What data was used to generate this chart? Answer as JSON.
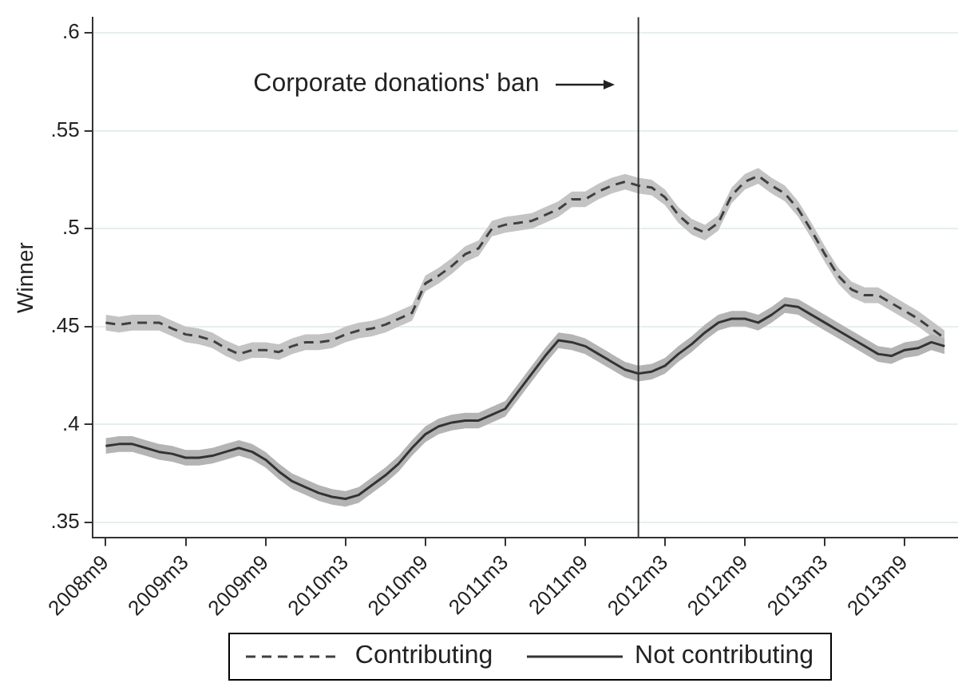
{
  "chart_data": {
    "type": "line",
    "ylabel": "Winner",
    "annotations": [
      "Corporate donations' ban"
    ],
    "x": [
      "2008-09",
      "2008-10",
      "2008-11",
      "2008-12",
      "2009-01",
      "2009-02",
      "2009-03",
      "2009-04",
      "2009-05",
      "2009-06",
      "2009-07",
      "2009-08",
      "2009-09",
      "2009-10",
      "2009-11",
      "2009-12",
      "2010-01",
      "2010-02",
      "2010-03",
      "2010-04",
      "2010-05",
      "2010-06",
      "2010-07",
      "2010-08",
      "2010-09",
      "2010-10",
      "2010-11",
      "2010-12",
      "2011-01",
      "2011-02",
      "2011-03",
      "2011-04",
      "2011-05",
      "2011-06",
      "2011-07",
      "2011-08",
      "2011-09",
      "2011-10",
      "2011-11",
      "2011-12",
      "2012-01",
      "2012-02",
      "2012-03",
      "2012-04",
      "2012-05",
      "2012-06",
      "2012-07",
      "2012-08",
      "2012-09",
      "2012-10",
      "2012-11",
      "2012-12",
      "2013-01",
      "2013-02",
      "2013-03",
      "2013-04",
      "2013-05",
      "2013-06",
      "2013-07",
      "2013-08",
      "2013-09",
      "2013-10",
      "2013-11",
      "2013-12"
    ],
    "series": [
      {
        "name": "Contributing",
        "color": "#404040",
        "line_style": "dashed",
        "values": [
          0.452,
          0.451,
          0.452,
          0.452,
          0.452,
          0.449,
          0.446,
          0.445,
          0.443,
          0.439,
          0.436,
          0.438,
          0.438,
          0.437,
          0.44,
          0.442,
          0.442,
          0.443,
          0.446,
          0.448,
          0.449,
          0.451,
          0.454,
          0.457,
          0.472,
          0.476,
          0.481,
          0.487,
          0.49,
          0.5,
          0.502,
          0.503,
          0.504,
          0.507,
          0.51,
          0.515,
          0.515,
          0.519,
          0.522,
          0.524,
          0.522,
          0.521,
          0.516,
          0.507,
          0.501,
          0.498,
          0.503,
          0.517,
          0.524,
          0.527,
          0.522,
          0.518,
          0.51,
          0.499,
          0.487,
          0.476,
          0.469,
          0.466,
          0.466,
          0.462,
          0.458,
          0.454,
          0.449,
          0.444
        ],
        "lower": [
          0.448,
          0.447,
          0.448,
          0.448,
          0.448,
          0.445,
          0.442,
          0.441,
          0.439,
          0.435,
          0.432,
          0.434,
          0.434,
          0.433,
          0.436,
          0.438,
          0.438,
          0.439,
          0.442,
          0.444,
          0.445,
          0.447,
          0.45,
          0.453,
          0.468,
          0.472,
          0.477,
          0.483,
          0.486,
          0.496,
          0.498,
          0.499,
          0.5,
          0.503,
          0.506,
          0.511,
          0.511,
          0.515,
          0.518,
          0.52,
          0.518,
          0.517,
          0.512,
          0.503,
          0.497,
          0.494,
          0.499,
          0.513,
          0.52,
          0.523,
          0.518,
          0.514,
          0.506,
          0.495,
          0.483,
          0.472,
          0.465,
          0.462,
          0.462,
          0.458,
          0.454,
          0.45,
          0.445,
          0.44
        ],
        "upper": [
          0.456,
          0.455,
          0.456,
          0.456,
          0.456,
          0.453,
          0.45,
          0.449,
          0.447,
          0.443,
          0.44,
          0.442,
          0.442,
          0.441,
          0.444,
          0.446,
          0.446,
          0.447,
          0.45,
          0.452,
          0.453,
          0.455,
          0.458,
          0.461,
          0.476,
          0.48,
          0.485,
          0.491,
          0.494,
          0.504,
          0.506,
          0.507,
          0.508,
          0.511,
          0.514,
          0.519,
          0.519,
          0.523,
          0.526,
          0.528,
          0.526,
          0.525,
          0.52,
          0.511,
          0.505,
          0.502,
          0.507,
          0.521,
          0.528,
          0.531,
          0.526,
          0.522,
          0.514,
          0.503,
          0.491,
          0.48,
          0.473,
          0.47,
          0.47,
          0.466,
          0.462,
          0.458,
          0.453,
          0.448
        ]
      },
      {
        "name": "Not contributing",
        "color": "#333333",
        "line_style": "solid",
        "values": [
          0.389,
          0.39,
          0.39,
          0.388,
          0.386,
          0.385,
          0.383,
          0.383,
          0.384,
          0.386,
          0.388,
          0.386,
          0.382,
          0.376,
          0.371,
          0.368,
          0.365,
          0.363,
          0.362,
          0.364,
          0.369,
          0.374,
          0.38,
          0.388,
          0.395,
          0.399,
          0.401,
          0.402,
          0.402,
          0.405,
          0.408,
          0.417,
          0.426,
          0.435,
          0.443,
          0.442,
          0.44,
          0.436,
          0.432,
          0.428,
          0.426,
          0.427,
          0.43,
          0.436,
          0.441,
          0.447,
          0.452,
          0.454,
          0.454,
          0.452,
          0.456,
          0.461,
          0.46,
          0.456,
          0.452,
          0.448,
          0.444,
          0.44,
          0.436,
          0.435,
          0.438,
          0.439,
          0.442,
          0.44
        ],
        "lower": [
          0.385,
          0.386,
          0.386,
          0.384,
          0.382,
          0.381,
          0.379,
          0.379,
          0.38,
          0.382,
          0.384,
          0.382,
          0.378,
          0.372,
          0.367,
          0.364,
          0.361,
          0.359,
          0.358,
          0.36,
          0.365,
          0.37,
          0.376,
          0.384,
          0.391,
          0.395,
          0.397,
          0.398,
          0.398,
          0.401,
          0.404,
          0.413,
          0.422,
          0.431,
          0.439,
          0.438,
          0.436,
          0.432,
          0.428,
          0.424,
          0.422,
          0.423,
          0.426,
          0.432,
          0.437,
          0.443,
          0.448,
          0.45,
          0.45,
          0.448,
          0.452,
          0.457,
          0.456,
          0.452,
          0.448,
          0.444,
          0.44,
          0.436,
          0.432,
          0.431,
          0.434,
          0.435,
          0.438,
          0.436
        ],
        "upper": [
          0.393,
          0.394,
          0.394,
          0.392,
          0.39,
          0.389,
          0.387,
          0.387,
          0.388,
          0.39,
          0.392,
          0.39,
          0.386,
          0.38,
          0.375,
          0.372,
          0.369,
          0.367,
          0.366,
          0.368,
          0.373,
          0.378,
          0.384,
          0.392,
          0.399,
          0.403,
          0.405,
          0.406,
          0.406,
          0.409,
          0.412,
          0.421,
          0.43,
          0.439,
          0.447,
          0.446,
          0.444,
          0.44,
          0.436,
          0.432,
          0.43,
          0.431,
          0.434,
          0.44,
          0.445,
          0.451,
          0.456,
          0.458,
          0.458,
          0.456,
          0.46,
          0.465,
          0.464,
          0.46,
          0.456,
          0.452,
          0.448,
          0.444,
          0.44,
          0.439,
          0.442,
          0.443,
          0.446,
          0.444
        ]
      }
    ],
    "xlim": [
      "2008-08",
      "2014-01"
    ],
    "xticks": [
      {
        "value": "2008-09",
        "label": "2008m9"
      },
      {
        "value": "2009-03",
        "label": "2009m3"
      },
      {
        "value": "2009-09",
        "label": "2009m9"
      },
      {
        "value": "2010-03",
        "label": "2010m3"
      },
      {
        "value": "2010-09",
        "label": "2010m9"
      },
      {
        "value": "2011-03",
        "label": "2011m3"
      },
      {
        "value": "2011-09",
        "label": "2011m9"
      },
      {
        "value": "2012-03",
        "label": "2012m3"
      },
      {
        "value": "2012-09",
        "label": "2012m9"
      },
      {
        "value": "2013-03",
        "label": "2013m3"
      },
      {
        "value": "2013-09",
        "label": "2013m9"
      }
    ],
    "ylim": [
      0.342,
      0.608
    ],
    "yticks": [
      {
        "value": 0.35,
        "label": ".35"
      },
      {
        "value": 0.4,
        "label": ".4"
      },
      {
        "value": 0.45,
        "label": ".45"
      },
      {
        "value": 0.5,
        "label": ".5"
      },
      {
        "value": 0.55,
        "label": ".55"
      },
      {
        "value": 0.6,
        "label": ".6"
      }
    ],
    "ref_lines": [
      {
        "axis": "x",
        "value": "2012-01",
        "color": "#333333"
      }
    ],
    "grid": "y",
    "legend": "bottom",
    "marker": "none"
  }
}
